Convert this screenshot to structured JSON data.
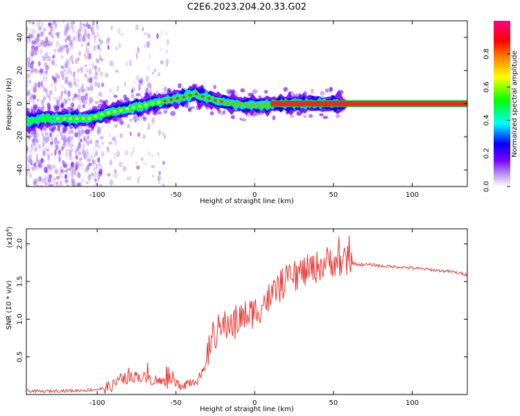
{
  "title": "C2E6.2023.204.20.33.G02",
  "chart_data": [
    {
      "type": "heatmap",
      "xlabel": "Height of straight line (km)",
      "ylabel": "Frequency (Hz)",
      "xlim": [
        -145,
        135
      ],
      "ylim": [
        -50,
        50
      ],
      "x_ticks": [
        -100,
        -50,
        0,
        50,
        100
      ],
      "x_tick_labels": [
        "-100",
        "-50",
        "0",
        "50",
        "100"
      ],
      "y_ticks": [
        -40,
        -20,
        0,
        20,
        40
      ],
      "y_tick_labels": [
        "-40",
        "-20",
        "0",
        "20",
        "40"
      ],
      "ridge": {
        "x": [
          -145,
          -135,
          -125,
          -115,
          -105,
          -95,
          -85,
          -75,
          -65,
          -55,
          -45,
          -38,
          -32,
          -25,
          -15,
          -5,
          5,
          15,
          135
        ],
        "y": [
          -11,
          -9,
          -9,
          -9,
          -9,
          -6,
          -4,
          -2,
          0,
          2,
          4,
          6,
          4,
          2,
          0,
          -1,
          -1,
          0,
          0
        ]
      },
      "colorbar": {
        "label": "Normalized spectral amplitude",
        "range": [
          0,
          1
        ],
        "ticks": [
          0.0,
          0.2,
          0.4,
          0.6,
          0.8
        ],
        "tick_labels": [
          "0.0",
          "0.2",
          "0.4",
          "0.6",
          "0.8"
        ],
        "colors": [
          "#ffffff",
          "#b48cf0",
          "#7800ff",
          "#0000ff",
          "#00ffff",
          "#00ff00",
          "#ffff00",
          "#ff8000",
          "#ff0000",
          "#ff0080"
        ]
      }
    },
    {
      "type": "line",
      "xlabel": "Height of straight line (km)",
      "ylabel": "SNR (10 * v/v)",
      "y_scale_label": "(x10",
      "y_scale_exp": "4",
      "ylim": [
        0,
        2.2
      ],
      "xlim": [
        -145,
        135
      ],
      "x_ticks": [
        -100,
        -50,
        0,
        50,
        100
      ],
      "x_tick_labels": [
        "-100",
        "-50",
        "0",
        "50",
        "100"
      ],
      "y_ticks": [
        0.5,
        1.0,
        1.5,
        2.0
      ],
      "y_tick_labels": [
        "0.5",
        "1.0",
        "1.5",
        "2.0"
      ],
      "series": [
        {
          "color": "#e8302a",
          "x": [
            -145,
            -135,
            -125,
            -115,
            -105,
            -95,
            -90,
            -85,
            -80,
            -75,
            -70,
            -65,
            -60,
            -55,
            -50,
            -45,
            -40,
            -35,
            -32,
            -30,
            -28,
            -25,
            -20,
            -15,
            -10,
            -5,
            0,
            5,
            10,
            15,
            20,
            25,
            30,
            35,
            40,
            45,
            50,
            55,
            60,
            65,
            75,
            85,
            95,
            105,
            115,
            125,
            135
          ],
          "y": [
            0.05,
            0.04,
            0.05,
            0.05,
            0.06,
            0.08,
            0.12,
            0.2,
            0.22,
            0.25,
            0.22,
            0.2,
            0.17,
            0.15,
            0.13,
            0.14,
            0.18,
            0.22,
            0.3,
            0.5,
            0.72,
            0.82,
            0.9,
            0.95,
            1.0,
            1.05,
            1.1,
            1.2,
            1.3,
            1.42,
            1.5,
            1.58,
            1.62,
            1.65,
            1.7,
            1.75,
            1.78,
            1.75,
            1.76,
            1.73,
            1.72,
            1.7,
            1.69,
            1.67,
            1.65,
            1.63,
            1.59
          ]
        }
      ]
    }
  ]
}
